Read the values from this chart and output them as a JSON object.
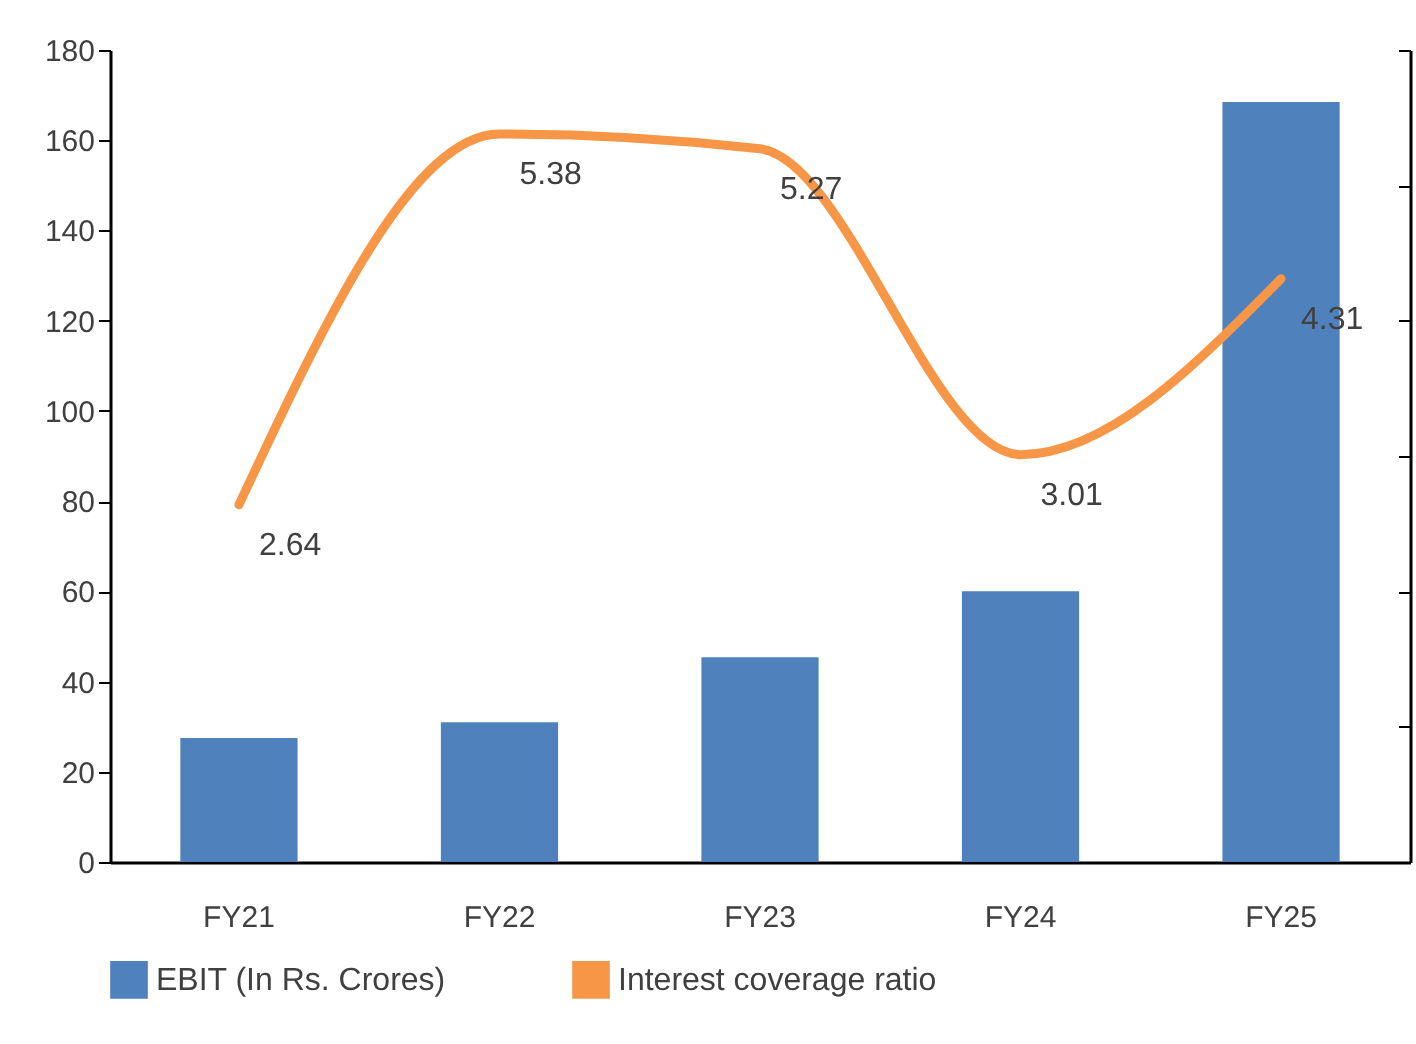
{
  "chart_data": {
    "type": "bar",
    "categories": [
      "FY21",
      "FY22",
      "FY23",
      "FY24",
      "FY25"
    ],
    "series": [
      {
        "name": "EBIT (In Rs. Crores)",
        "color": "#4f81bd",
        "values": [
          27.5,
          31,
          45.4,
          60,
          168.5
        ]
      },
      {
        "name": "Interest coverage ratio",
        "type": "line",
        "axis": "y2",
        "color": "#f79646",
        "values": [
          2.64,
          5.38,
          5.27,
          3.01,
          4.31
        ],
        "value_labels": [
          "2.64",
          "5.38",
          "5.27",
          "3.01",
          "4.31"
        ]
      }
    ],
    "ylim": [
      0,
      180
    ],
    "yticks": [
      0,
      20,
      40,
      60,
      80,
      100,
      120,
      140,
      160,
      180
    ],
    "y2lim": [
      0,
      6
    ],
    "y2ticks": [
      {
        "value": 0,
        "label": null
      },
      {
        "value": 1,
        "label": null
      },
      {
        "value": 2,
        "label": null
      },
      {
        "value": 3,
        "label": null
      },
      {
        "value": 4,
        "label": null
      },
      {
        "value": 5,
        "label": null
      },
      {
        "value": 6,
        "label": null
      }
    ],
    "grid": false,
    "legend": "bottom"
  }
}
